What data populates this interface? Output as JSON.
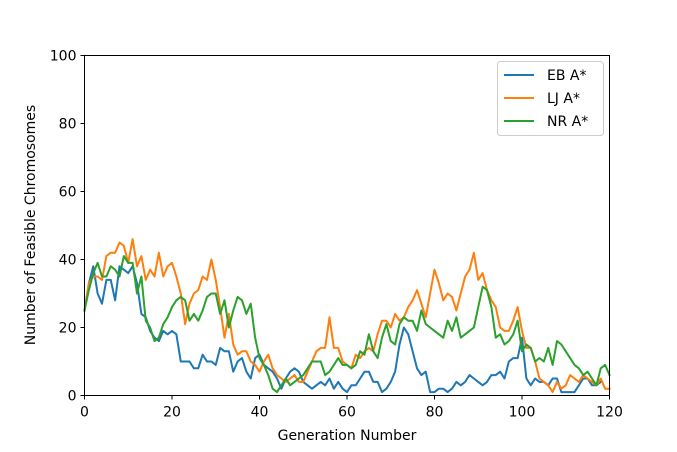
{
  "chart_data": {
    "type": "line",
    "title": "",
    "xlabel": "Generation Number",
    "ylabel": "Number of Feasible Chromosomes",
    "xlim": [
      0,
      120
    ],
    "ylim": [
      0,
      100
    ],
    "xticks": [
      0,
      20,
      40,
      60,
      80,
      100,
      120
    ],
    "yticks": [
      0,
      20,
      40,
      60,
      80,
      100
    ],
    "grid": false,
    "legend_position": "top-right",
    "x_step": 1,
    "series": [
      {
        "name": "EB A*",
        "color": "#1f77b4",
        "values": [
          25,
          33,
          38,
          30,
          27,
          34,
          34,
          28,
          38,
          37,
          36,
          38,
          33,
          24,
          23,
          19,
          17,
          16,
          19,
          18,
          19,
          18,
          10,
          10,
          10,
          8,
          8,
          12,
          10,
          10,
          9,
          14,
          13,
          13,
          7,
          10,
          11,
          7,
          5,
          11,
          12,
          9,
          8,
          7,
          5,
          2,
          5,
          7,
          8,
          7,
          4,
          3,
          2,
          3,
          4,
          3,
          5,
          2,
          4,
          2,
          1,
          3,
          3,
          5,
          7,
          7,
          4,
          4,
          1,
          2,
          4,
          7,
          15,
          20,
          18,
          13,
          8,
          6,
          7,
          1,
          1,
          2,
          2,
          1,
          2,
          4,
          3,
          4,
          6,
          5,
          4,
          3,
          4,
          6,
          6,
          7,
          5,
          10,
          11,
          11,
          17,
          5,
          3,
          5,
          4,
          4,
          3,
          5,
          5,
          1,
          1,
          1,
          1,
          3,
          5,
          5,
          3,
          3,
          4
        ]
      },
      {
        "name": "LJ A*",
        "color": "#ff7f0e",
        "values": [
          25,
          33,
          35,
          35,
          34,
          41,
          42,
          42,
          45,
          44,
          39,
          46,
          38,
          41,
          34,
          37,
          35,
          42,
          35,
          38,
          39,
          35,
          30,
          21,
          27,
          30,
          31,
          35,
          34,
          40,
          34,
          26,
          17,
          24,
          15,
          12,
          13,
          13,
          10,
          9,
          7,
          10,
          12,
          8,
          6,
          5,
          4,
          5,
          6,
          4,
          4,
          7,
          10,
          13,
          14,
          14,
          23,
          14,
          14,
          10,
          9,
          8,
          12,
          11,
          13,
          14,
          13,
          18,
          22,
          22,
          20,
          24,
          22,
          23,
          26,
          28,
          31,
          27,
          23,
          30,
          37,
          33,
          28,
          30,
          29,
          25,
          30,
          35,
          37,
          42,
          34,
          36,
          31,
          28,
          26,
          20,
          19,
          19,
          22,
          26,
          19,
          14,
          14,
          10,
          5,
          4,
          3,
          1,
          4,
          2,
          3,
          6,
          5,
          4,
          6,
          5,
          4,
          3,
          5,
          2,
          2
        ]
      },
      {
        "name": "NR A*",
        "color": "#2ca02c",
        "values": [
          25,
          31,
          36,
          39,
          35,
          35,
          38,
          37,
          35,
          41,
          39,
          39,
          30,
          35,
          22,
          20,
          16,
          17,
          21,
          23,
          26,
          28,
          29,
          28,
          22,
          24,
          22,
          25,
          29,
          30,
          30,
          24,
          28,
          20,
          25,
          29,
          28,
          24,
          27,
          17,
          11,
          9,
          6,
          2,
          1,
          3,
          5,
          3,
          4,
          5,
          6,
          8,
          10,
          10,
          10,
          6,
          7,
          9,
          11,
          9,
          9,
          8,
          9,
          13,
          12,
          18,
          13,
          11,
          17,
          21,
          16,
          15,
          21,
          23,
          22,
          22,
          19,
          25,
          21,
          20,
          19,
          18,
          17,
          22,
          19,
          23,
          17,
          18,
          19,
          20,
          26,
          32,
          31,
          26,
          17,
          18,
          15,
          16,
          18,
          22,
          13,
          15,
          14,
          10,
          11,
          10,
          14,
          9,
          16,
          15,
          13,
          11,
          9,
          8,
          6,
          7,
          5,
          3,
          8,
          9,
          6
        ]
      }
    ]
  }
}
